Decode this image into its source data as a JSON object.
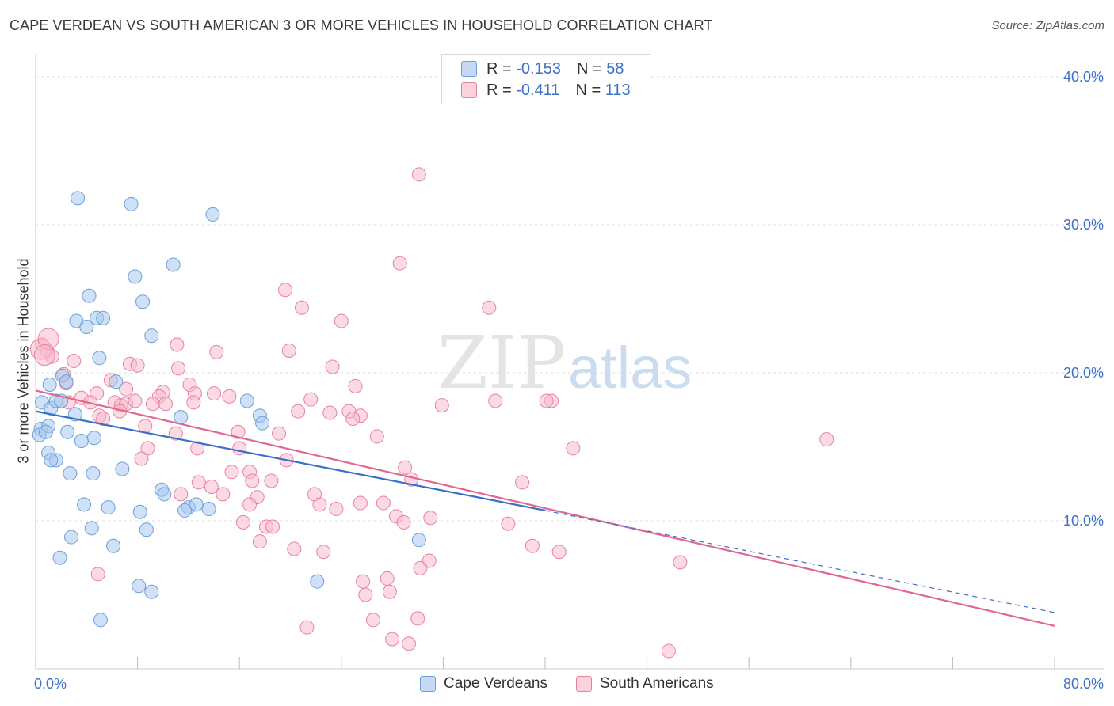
{
  "header": {
    "title": "CAPE VERDEAN VS SOUTH AMERICAN 3 OR MORE VEHICLES IN HOUSEHOLD CORRELATION CHART",
    "source": "Source: ZipAtlas.com"
  },
  "watermark": {
    "zip": "ZIP",
    "atlas": "atlas"
  },
  "legend": {
    "rows": [
      {
        "r_label": "R =",
        "r_value": "-0.153",
        "n_label": "N =",
        "n_value": "58",
        "color": "#a8c8f0",
        "edge": "#6f9fd8"
      },
      {
        "r_label": "R =",
        "r_value": "-0.411",
        "n_label": "N =",
        "n_value": "113",
        "color": "#f8bccd",
        "edge": "#e8829f"
      }
    ],
    "series_names": [
      "Cape Verdeans",
      "South Americans"
    ]
  },
  "colors": {
    "blue_fill": "#a8c8f0",
    "blue_edge": "#6f9fd8",
    "blue_line": "#3c6fc8",
    "pink_fill": "#f8bccd",
    "pink_edge": "#e8829f",
    "pink_line": "#e06890",
    "axis_text": "#3c6fc8",
    "grid": "#dddddd"
  },
  "chart_data": {
    "type": "scatter",
    "title": "CAPE VERDEAN VS SOUTH AMERICAN 3 OR MORE VEHICLES IN HOUSEHOLD CORRELATION CHART",
    "xlabel": "",
    "ylabel": "3 or more Vehicles in Household",
    "xlim": [
      0,
      80
    ],
    "ylim": [
      0,
      40
    ],
    "x_tick_labels": [
      "0.0%",
      "80.0%"
    ],
    "y_ticks": [
      10,
      20,
      30,
      40
    ],
    "y_tick_labels": [
      "10.0%",
      "20.0%",
      "30.0%",
      "40.0%"
    ],
    "grid": true,
    "legend_position": "top-center",
    "series": [
      {
        "name": "Cape Verdeans",
        "r": -0.153,
        "n": 58,
        "trend": {
          "x0": 0,
          "y0": 17.4,
          "x1": 40,
          "y1": 10.7,
          "dash_to_x": 80,
          "dash_to_y": 3.8
        },
        "points": [
          [
            3.3,
            31.8
          ],
          [
            7.5,
            31.4
          ],
          [
            13.9,
            30.7
          ],
          [
            7.8,
            26.5
          ],
          [
            10.8,
            27.3
          ],
          [
            4.2,
            25.2
          ],
          [
            8.4,
            24.8
          ],
          [
            3.2,
            23.5
          ],
          [
            4.0,
            23.1
          ],
          [
            4.8,
            23.7
          ],
          [
            5.3,
            23.7
          ],
          [
            9.1,
            22.5
          ],
          [
            5.0,
            21.0
          ],
          [
            2.1,
            19.8
          ],
          [
            2.4,
            19.4
          ],
          [
            1.1,
            19.2
          ],
          [
            6.3,
            19.4
          ],
          [
            0.5,
            18.0
          ],
          [
            1.2,
            17.6
          ],
          [
            1.6,
            18.1
          ],
          [
            2.0,
            18.1
          ],
          [
            3.1,
            17.2
          ],
          [
            16.6,
            18.1
          ],
          [
            17.6,
            17.1
          ],
          [
            0.4,
            16.2
          ],
          [
            1.0,
            16.4
          ],
          [
            11.4,
            17.0
          ],
          [
            17.8,
            16.6
          ],
          [
            0.3,
            15.8
          ],
          [
            0.8,
            16.0
          ],
          [
            2.5,
            16.0
          ],
          [
            3.6,
            15.4
          ],
          [
            4.6,
            15.6
          ],
          [
            1.0,
            14.6
          ],
          [
            1.6,
            14.1
          ],
          [
            1.2,
            14.1
          ],
          [
            6.8,
            13.5
          ],
          [
            2.7,
            13.2
          ],
          [
            4.5,
            13.2
          ],
          [
            9.9,
            12.1
          ],
          [
            10.1,
            11.8
          ],
          [
            3.8,
            11.1
          ],
          [
            5.7,
            10.9
          ],
          [
            8.2,
            10.6
          ],
          [
            12.0,
            10.9
          ],
          [
            12.6,
            11.1
          ],
          [
            13.6,
            10.8
          ],
          [
            11.7,
            10.7
          ],
          [
            4.4,
            9.5
          ],
          [
            2.8,
            8.9
          ],
          [
            8.7,
            9.4
          ],
          [
            6.1,
            8.3
          ],
          [
            30.1,
            8.7
          ],
          [
            1.9,
            7.5
          ],
          [
            8.1,
            5.6
          ],
          [
            9.1,
            5.2
          ],
          [
            22.1,
            5.9
          ],
          [
            5.1,
            3.3
          ]
        ]
      },
      {
        "name": "South Americans",
        "r": -0.411,
        "n": 113,
        "trend": {
          "x0": 0,
          "y0": 18.8,
          "x1": 80,
          "y1": 2.9
        },
        "points": [
          [
            0.5,
            21.9
          ],
          [
            0.9,
            21.5
          ],
          [
            1.3,
            21.1
          ],
          [
            3.0,
            20.8
          ],
          [
            30.1,
            33.4
          ],
          [
            28.6,
            27.4
          ],
          [
            19.6,
            25.6
          ],
          [
            35.6,
            24.4
          ],
          [
            20.9,
            24.4
          ],
          [
            24.0,
            23.5
          ],
          [
            14.2,
            21.4
          ],
          [
            19.9,
            21.5
          ],
          [
            11.1,
            21.9
          ],
          [
            7.4,
            20.6
          ],
          [
            23.3,
            20.4
          ],
          [
            8.0,
            20.5
          ],
          [
            11.2,
            20.3
          ],
          [
            2.2,
            19.9
          ],
          [
            5.9,
            19.5
          ],
          [
            2.4,
            19.3
          ],
          [
            12.1,
            19.2
          ],
          [
            7.1,
            18.9
          ],
          [
            12.5,
            18.6
          ],
          [
            14.0,
            18.6
          ],
          [
            15.2,
            18.4
          ],
          [
            10.0,
            18.7
          ],
          [
            4.8,
            18.6
          ],
          [
            25.1,
            19.1
          ],
          [
            9.7,
            18.4
          ],
          [
            3.6,
            18.3
          ],
          [
            4.3,
            18.0
          ],
          [
            6.2,
            18.0
          ],
          [
            6.7,
            17.8
          ],
          [
            7.1,
            17.9
          ],
          [
            7.8,
            18.1
          ],
          [
            9.2,
            17.9
          ],
          [
            10.2,
            17.9
          ],
          [
            12.4,
            18.0
          ],
          [
            21.6,
            18.2
          ],
          [
            36.1,
            18.1
          ],
          [
            40.5,
            18.1
          ],
          [
            40.1,
            18.1
          ],
          [
            6.6,
            17.4
          ],
          [
            5.0,
            17.1
          ],
          [
            20.6,
            17.4
          ],
          [
            23.1,
            17.3
          ],
          [
            24.6,
            17.4
          ],
          [
            25.5,
            17.1
          ],
          [
            24.9,
            16.9
          ],
          [
            5.3,
            16.9
          ],
          [
            8.6,
            16.4
          ],
          [
            11.0,
            15.9
          ],
          [
            19.1,
            15.9
          ],
          [
            15.9,
            16.0
          ],
          [
            26.8,
            15.7
          ],
          [
            62.1,
            15.5
          ],
          [
            8.8,
            14.9
          ],
          [
            12.7,
            14.9
          ],
          [
            16.0,
            14.9
          ],
          [
            42.2,
            14.9
          ],
          [
            8.3,
            14.2
          ],
          [
            19.7,
            14.1
          ],
          [
            15.4,
            13.3
          ],
          [
            16.8,
            13.3
          ],
          [
            29.0,
            13.6
          ],
          [
            17.0,
            12.7
          ],
          [
            18.5,
            12.7
          ],
          [
            12.8,
            12.6
          ],
          [
            13.8,
            12.3
          ],
          [
            29.5,
            12.8
          ],
          [
            38.2,
            12.6
          ],
          [
            11.4,
            11.8
          ],
          [
            14.7,
            11.8
          ],
          [
            17.4,
            11.6
          ],
          [
            21.9,
            11.8
          ],
          [
            16.8,
            11.1
          ],
          [
            22.3,
            11.1
          ],
          [
            23.6,
            10.8
          ],
          [
            25.5,
            11.2
          ],
          [
            27.3,
            11.2
          ],
          [
            31.0,
            10.2
          ],
          [
            28.3,
            10.3
          ],
          [
            16.3,
            9.9
          ],
          [
            18.1,
            9.6
          ],
          [
            18.6,
            9.6
          ],
          [
            28.9,
            9.9
          ],
          [
            37.1,
            9.8
          ],
          [
            17.6,
            8.6
          ],
          [
            39.0,
            8.3
          ],
          [
            20.3,
            8.1
          ],
          [
            22.6,
            7.9
          ],
          [
            41.1,
            7.9
          ],
          [
            30.9,
            7.3
          ],
          [
            50.6,
            7.2
          ],
          [
            30.2,
            6.8
          ],
          [
            4.9,
            6.4
          ],
          [
            25.7,
            5.9
          ],
          [
            27.6,
            6.1
          ],
          [
            25.9,
            5.0
          ],
          [
            27.8,
            5.2
          ],
          [
            26.5,
            3.3
          ],
          [
            21.3,
            2.8
          ],
          [
            30.0,
            3.4
          ],
          [
            28.0,
            2.0
          ],
          [
            29.3,
            1.7
          ],
          [
            49.7,
            1.2
          ],
          [
            0.4,
            21.6
          ],
          [
            1.0,
            22.3
          ],
          [
            0.7,
            21.2
          ],
          [
            2.6,
            18.0
          ],
          [
            31.9,
            17.8
          ]
        ]
      }
    ]
  }
}
